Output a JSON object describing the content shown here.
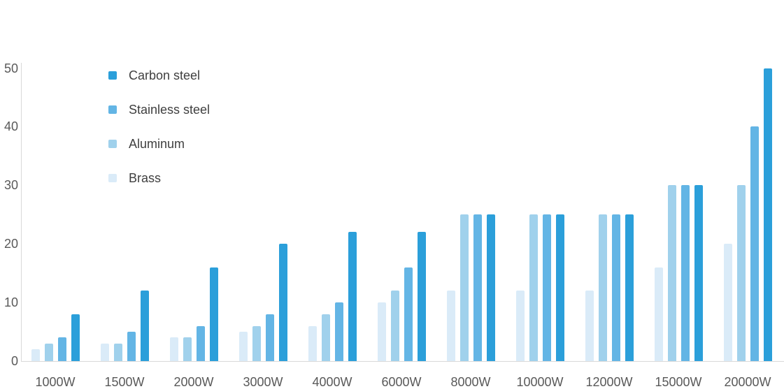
{
  "chart_data": {
    "type": "bar",
    "title": "",
    "xlabel": "",
    "ylabel": "",
    "categories": [
      "1000W",
      "1500W",
      "2000W",
      "3000W",
      "4000W",
      "6000W",
      "8000W",
      "10000W",
      "12000W",
      "15000W",
      "20000W"
    ],
    "series": [
      {
        "name": "Carbon steel",
        "color": "#2b9fda",
        "values": [
          8,
          12,
          16,
          20,
          22,
          22,
          25,
          25,
          25,
          30,
          50
        ]
      },
      {
        "name": "Stainless steel",
        "color": "#63b5e5",
        "values": [
          4,
          5,
          6,
          8,
          10,
          16,
          25,
          25,
          25,
          30,
          40
        ]
      },
      {
        "name": "Aluminum",
        "color": "#a0d1ec",
        "values": [
          3,
          3,
          4,
          6,
          8,
          12,
          25,
          25,
          25,
          30,
          30
        ]
      },
      {
        "name": "Brass",
        "color": "#daebf8",
        "values": [
          2,
          3,
          4,
          5,
          6,
          10,
          12,
          12,
          12,
          16,
          20
        ]
      }
    ],
    "ylim": [
      0,
      50
    ],
    "yticks": [
      0,
      10,
      20,
      30,
      40,
      50
    ],
    "grid": false,
    "legend_position": "top-left"
  },
  "colors": {
    "background": "#ffffff",
    "axis_line": "#d9d9d9",
    "tick_text": "#595959",
    "legend_text": "#3f3f3f"
  }
}
